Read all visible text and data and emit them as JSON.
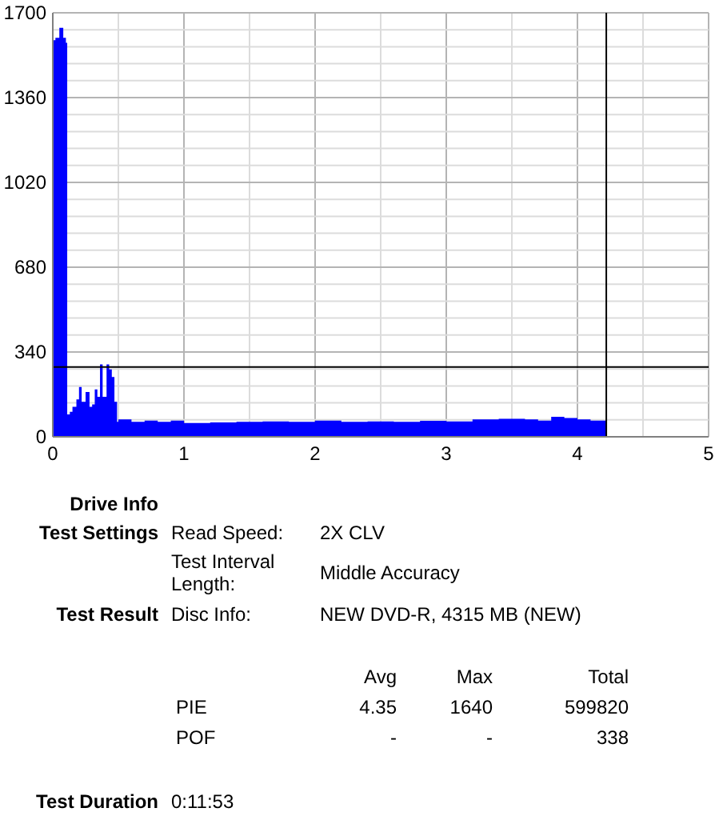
{
  "chart_data": {
    "type": "area",
    "x": [
      0,
      0.02,
      0.05,
      0.08,
      0.1,
      0.11,
      0.13,
      0.15,
      0.18,
      0.2,
      0.22,
      0.25,
      0.28,
      0.3,
      0.32,
      0.34,
      0.36,
      0.38,
      0.41,
      0.43,
      0.45,
      0.47,
      0.49,
      0.5,
      0.6,
      0.7,
      0.8,
      0.9,
      1.0,
      1.2,
      1.4,
      1.6,
      1.8,
      2.0,
      2.2,
      2.4,
      2.6,
      2.8,
      3.0,
      3.2,
      3.4,
      3.6,
      3.7,
      3.8,
      3.9,
      4.0,
      4.1,
      4.22
    ],
    "series": [
      {
        "color": "#0000ff",
        "values": [
          1590,
          1600,
          1640,
          1600,
          1580,
          90,
          100,
          120,
          150,
          200,
          140,
          180,
          120,
          130,
          190,
          160,
          290,
          160,
          290,
          270,
          240,
          140,
          60,
          70,
          60,
          65,
          60,
          65,
          55,
          58,
          60,
          62,
          60,
          65,
          60,
          62,
          60,
          64,
          62,
          70,
          72,
          70,
          65,
          80,
          75,
          70,
          65,
          60
        ]
      }
    ],
    "xlim": [
      0,
      5
    ],
    "xticks": [
      0,
      {
        "value": 0.5,
        "label": null
      },
      1,
      {
        "value": 1.5,
        "label": null
      },
      2,
      {
        "value": 2.5,
        "label": null
      },
      3,
      {
        "value": 3.5,
        "label": null
      },
      4,
      {
        "value": 4.5,
        "label": null
      },
      5
    ],
    "ylim": [
      0,
      1700
    ],
    "yticks": [
      0,
      {
        "value": 68,
        "label": null
      },
      {
        "value": 136,
        "label": null
      },
      {
        "value": 204,
        "label": null
      },
      {
        "value": 272,
        "label": null
      },
      340,
      {
        "value": 408,
        "label": null
      },
      {
        "value": 476,
        "label": null
      },
      {
        "value": 544,
        "label": null
      },
      {
        "value": 612,
        "label": null
      },
      680,
      {
        "value": 748,
        "label": null
      },
      {
        "value": 816,
        "label": null
      },
      {
        "value": 884,
        "label": null
      },
      {
        "value": 952,
        "label": null
      },
      1020,
      {
        "value": 1088,
        "label": null
      },
      {
        "value": 1156,
        "label": null
      },
      {
        "value": 1224,
        "label": null
      },
      {
        "value": 1292,
        "label": null
      },
      1360,
      {
        "value": 1428,
        "label": null
      },
      {
        "value": 1496,
        "label": null
      },
      {
        "value": 1564,
        "label": null
      },
      {
        "value": 1632,
        "label": null
      },
      1700
    ],
    "grid": true,
    "ref_lines": [
      {
        "axis": "y",
        "value": 280,
        "color": "#000000"
      },
      {
        "axis": "x",
        "value": 4.22,
        "color": "#000000"
      }
    ],
    "annotations": [
      "Drive Info",
      "Test Settings",
      "Read Speed:",
      "2X CLV",
      "Test Interval Length:",
      "Middle Accuracy",
      "Test Result",
      "Disc Info:",
      "NEW DVD-R, 4315 MB (NEW)",
      "Avg",
      "Max",
      "Total",
      "PIE",
      "4.35",
      "1640",
      "599820",
      "POF",
      "-",
      "-",
      "338",
      "Test Duration",
      "0:11:53"
    ]
  }
}
